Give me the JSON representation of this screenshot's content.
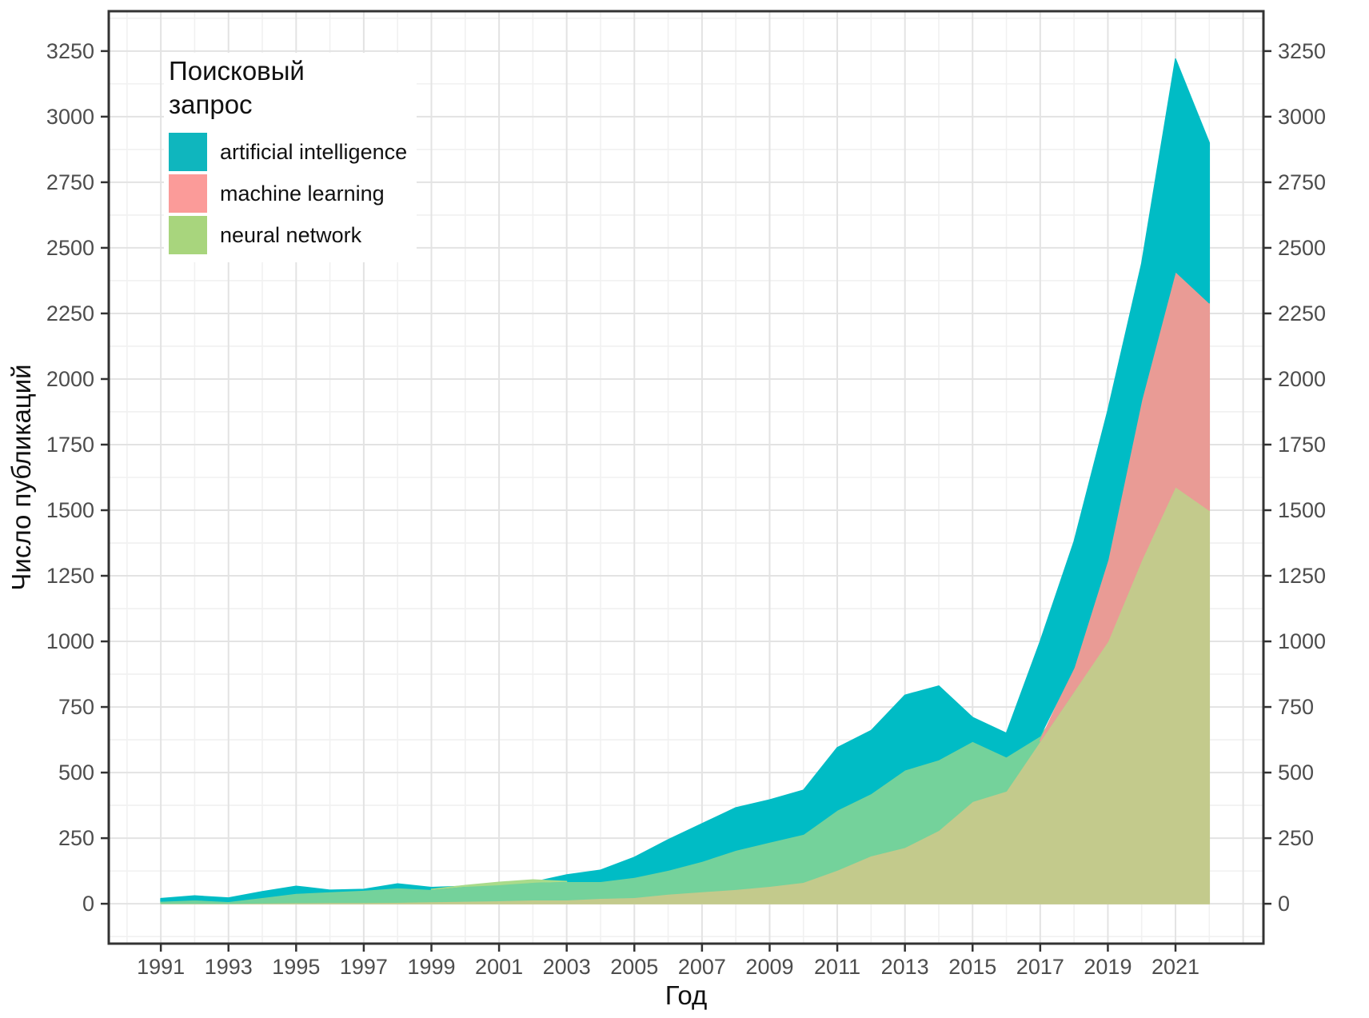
{
  "chart_data": {
    "type": "area",
    "mode": "overlapping-identity",
    "title": "",
    "xlabel": "Год",
    "ylabel": "Число публикаций",
    "legend_title": "Поисковый запрос",
    "legend_position": "top-left-inside",
    "grid": "major+minor",
    "x": [
      1991,
      1992,
      1993,
      1994,
      1995,
      1996,
      1997,
      1998,
      1999,
      2000,
      2001,
      2002,
      2003,
      2004,
      2005,
      2006,
      2007,
      2008,
      2009,
      2010,
      2011,
      2012,
      2013,
      2014,
      2015,
      2016,
      2017,
      2018,
      2019,
      2020,
      2021,
      2022
    ],
    "series": [
      {
        "name": "artificial intelligence",
        "legend_color": "#0FB6BE",
        "values": [
          20,
          30,
          22,
          46,
          67,
          52,
          55,
          76,
          62,
          67,
          73,
          82,
          110,
          128,
          177,
          244,
          305,
          366,
          396,
          433,
          595,
          660,
          795,
          830,
          710,
          650,
          1000,
          1380,
          1880,
          2440,
          3220,
          2900
        ]
      },
      {
        "name": "machine learning",
        "legend_color": "#FB9B99",
        "values": [
          2,
          2,
          2,
          3,
          4,
          5,
          5,
          6,
          8,
          10,
          12,
          15,
          15,
          21,
          24,
          37,
          46,
          55,
          67,
          82,
          128,
          183,
          215,
          280,
          390,
          430,
          620,
          900,
          1310,
          1920,
          2410,
          2290
        ]
      },
      {
        "name": "neural network",
        "legend_color": "#A8D57D",
        "values": [
          10,
          15,
          9,
          24,
          40,
          46,
          52,
          61,
          55,
          70,
          82,
          91,
          85,
          85,
          101,
          128,
          162,
          204,
          235,
          265,
          357,
          420,
          510,
          549,
          619,
          560,
          640,
          810,
          1000,
          1310,
          1590,
          1500
        ]
      }
    ],
    "band_colors": {
      "ai_only": "#00BCC5",
      "ai_nn_overlap": "#74D29B",
      "all_overlap": "#C3CA8C",
      "ai_ml_overlap": "#E99B95",
      "nn_only": "#AADB8A"
    },
    "x_ticks": [
      1991,
      1993,
      1995,
      1997,
      1999,
      2001,
      2003,
      2005,
      2007,
      2009,
      2011,
      2013,
      2015,
      2017,
      2019,
      2021
    ],
    "y_ticks": [
      0,
      250,
      500,
      750,
      1000,
      1250,
      1500,
      1750,
      2000,
      2250,
      2500,
      2750,
      3000,
      3250
    ],
    "xlim": [
      1989.46,
      2023.6
    ],
    "ylim": [
      -152,
      3402
    ],
    "colors_ui": {
      "grid_major": "#E3E3E3",
      "grid_minor": "#F1F1F1",
      "panel_border": "#333333",
      "tick_mark": "#333333",
      "tick_label": "#4d4d4d",
      "axis_title": "#111111"
    }
  }
}
